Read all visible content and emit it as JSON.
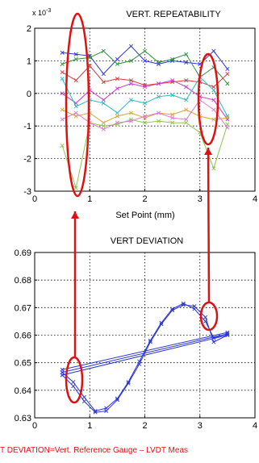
{
  "chart_data": [
    {
      "type": "line",
      "title": "VERT. REPEATABILITY",
      "scale_label": "x 10",
      "scale_exponent": "-3",
      "xlabel": "Set Point (mm)",
      "ylabel": "",
      "xlim": [
        0,
        4
      ],
      "ylim": [
        -3,
        2
      ],
      "xticks": [
        "0",
        "1",
        "2",
        "3",
        "4"
      ],
      "yticks": [
        "-3",
        "-2",
        "-1",
        "0",
        "1",
        "2"
      ],
      "grid": true,
      "x": [
        0.5,
        0.75,
        1.0,
        1.25,
        1.5,
        1.75,
        2.0,
        2.25,
        2.5,
        2.75,
        3.0,
        3.25,
        3.5
      ],
      "series": [
        {
          "color": "#2a35d8",
          "values": [
            1.25,
            1.2,
            1.15,
            0.6,
            1.05,
            1.45,
            1.0,
            0.9,
            1.0,
            0.95,
            0.9,
            1.3,
            0.75
          ]
        },
        {
          "color": "#2f8f3a",
          "values": [
            0.9,
            1.05,
            1.1,
            1.3,
            0.9,
            1.0,
            1.3,
            0.95,
            1.05,
            1.2,
            0.5,
            0.8,
            0.3
          ]
        },
        {
          "color": "#d23a3a",
          "values": [
            0.65,
            0.4,
            0.85,
            0.35,
            0.45,
            0.4,
            0.25,
            0.3,
            0.35,
            0.4,
            0.35,
            0.2,
            0.6
          ]
        },
        {
          "color": "#c83cc8",
          "values": [
            0.0,
            -0.3,
            0.1,
            -0.2,
            0.15,
            0.3,
            0.2,
            0.3,
            0.4,
            0.2,
            -0.1,
            -0.2,
            -0.8
          ]
        },
        {
          "color": "#2bb8c8",
          "values": [
            0.45,
            -0.4,
            -0.2,
            -0.3,
            -0.6,
            -0.2,
            -0.3,
            -0.1,
            -0.05,
            -0.2,
            0.5,
            0.1,
            -0.7
          ]
        },
        {
          "color": "#d9a53a",
          "values": [
            -0.5,
            -0.7,
            -0.6,
            -0.9,
            -0.7,
            -0.6,
            -0.75,
            -0.6,
            -0.65,
            -0.5,
            -0.7,
            -0.8,
            -0.75
          ]
        },
        {
          "color": "#8ac84a",
          "values": [
            -1.6,
            -2.9,
            -0.9,
            -1.0,
            -0.95,
            -0.8,
            -0.9,
            -0.85,
            -0.9,
            -0.9,
            -1.2,
            -2.3,
            -0.95
          ]
        },
        {
          "color": "#e07ad0",
          "values": [
            -0.8,
            -0.6,
            -0.9,
            -1.1,
            -0.9,
            -0.85,
            -0.7,
            -0.6,
            -0.75,
            -0.8,
            -0.2,
            -0.5,
            -1.05
          ]
        }
      ]
    },
    {
      "type": "line",
      "title": "VERT DEVIATION",
      "xlabel": "",
      "ylabel": "",
      "xlim": [
        0,
        4
      ],
      "ylim": [
        0.63,
        0.69
      ],
      "xticks": [
        "0",
        "1",
        "2",
        "3",
        "4"
      ],
      "yticks": [
        "0.63",
        "0.64",
        "0.65",
        "0.66",
        "0.67",
        "0.68",
        "0.69"
      ],
      "grid": true,
      "series": [
        {
          "color": "#2a35d8",
          "x": [
            0.5,
            0.7,
            0.9,
            1.1,
            1.3,
            1.5,
            1.7,
            1.9,
            2.1,
            2.3,
            2.5,
            2.7,
            2.9,
            3.1,
            3.25,
            3.5
          ],
          "values": [
            0.6465,
            0.643,
            0.6375,
            0.6325,
            0.6335,
            0.637,
            0.643,
            0.6505,
            0.658,
            0.6645,
            0.6695,
            0.6715,
            0.6695,
            0.665,
            0.659,
            0.6605
          ]
        },
        {
          "color": "#2a35d8",
          "x": [
            0.5,
            0.7,
            0.9,
            1.1,
            1.3,
            1.5,
            1.7,
            1.9,
            2.1,
            2.3,
            2.5,
            2.7,
            2.9,
            3.1,
            3.25,
            3.5
          ],
          "values": [
            0.6455,
            0.6415,
            0.636,
            0.632,
            0.6325,
            0.6365,
            0.6425,
            0.6495,
            0.6575,
            0.664,
            0.669,
            0.671,
            0.6705,
            0.6665,
            0.6575,
            0.66
          ]
        },
        {
          "color": "#2a35d8",
          "x": [
            0.5,
            3.5
          ],
          "values": [
            0.6475,
            0.661
          ]
        },
        {
          "color": "#2a35d8",
          "x": [
            0.5,
            3.5
          ],
          "values": [
            0.6465,
            0.6605
          ]
        },
        {
          "color": "#2a35d8",
          "x": [
            0.5,
            3.5
          ],
          "values": [
            0.6455,
            0.66
          ]
        }
      ]
    }
  ],
  "caption": "RT DEVIATION=Vert. Reference Gauge – LVDT Meas",
  "annotation_color": "#e01010"
}
